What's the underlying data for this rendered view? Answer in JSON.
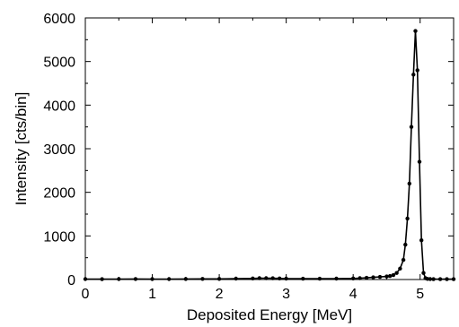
{
  "chart_data": {
    "type": "line",
    "title": "",
    "xlabel": "Deposited Energy [MeV]",
    "ylabel": "Intensity [cts/bin]",
    "xlim": [
      0,
      5.5
    ],
    "ylim": [
      0,
      6000
    ],
    "xticks": [
      "0",
      "1",
      "2",
      "3",
      "4",
      "5"
    ],
    "yticks": [
      "0",
      "1000",
      "2000",
      "3000",
      "4000",
      "5000",
      "6000"
    ],
    "grid": false,
    "legend": "none",
    "marker": "dot",
    "color": "#000000",
    "series": [
      {
        "x": [
          0,
          0.25,
          0.5,
          0.75,
          1.0,
          1.25,
          1.5,
          1.75,
          2.0,
          2.25,
          2.5,
          2.6,
          2.7,
          2.8,
          2.9,
          3.0,
          3.25,
          3.5,
          3.75,
          4.0,
          4.1,
          4.2,
          4.3,
          4.4,
          4.5,
          4.55,
          4.6,
          4.65,
          4.7,
          4.75,
          4.78,
          4.81,
          4.84,
          4.87,
          4.9,
          4.93,
          4.96,
          4.99,
          5.02,
          5.05,
          5.08,
          5.11,
          5.15,
          5.2,
          5.3,
          5.4,
          5.5
        ],
        "y": [
          10,
          8,
          10,
          12,
          10,
          10,
          12,
          15,
          15,
          20,
          25,
          30,
          30,
          28,
          25,
          20,
          18,
          18,
          20,
          25,
          30,
          40,
          50,
          60,
          70,
          80,
          100,
          150,
          250,
          450,
          800,
          1400,
          2200,
          3500,
          4700,
          5700,
          4800,
          2700,
          900,
          150,
          30,
          15,
          10,
          8,
          8,
          8,
          8
        ]
      }
    ]
  }
}
